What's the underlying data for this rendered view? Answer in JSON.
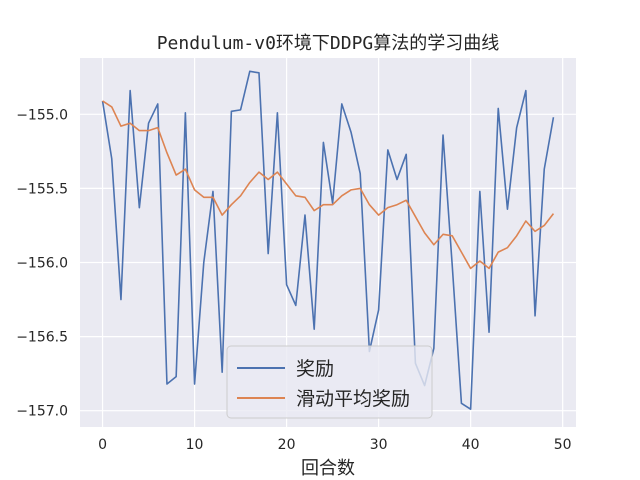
{
  "chart_data": {
    "type": "line",
    "title": "Pendulum-v0环境下DDPG算法的学习曲线",
    "xlabel": "回合数",
    "ylabel": "",
    "xlim": [
      -2.45,
      51.45
    ],
    "ylim": [
      -157.11,
      -154.62
    ],
    "xticks": [
      0,
      10,
      20,
      30,
      40,
      50
    ],
    "yticks": [
      -155.0,
      -155.5,
      -156.0,
      -156.5,
      -157.0
    ],
    "xtick_labels": [
      "0",
      "10",
      "20",
      "30",
      "40",
      "50"
    ],
    "ytick_labels": [
      "−155.0",
      "−155.5",
      "−156.0",
      "−156.5",
      "−157.0"
    ],
    "grid": true,
    "legend_position": "lower-center",
    "x": [
      0,
      1,
      2,
      3,
      4,
      5,
      6,
      7,
      8,
      9,
      10,
      11,
      12,
      13,
      14,
      15,
      16,
      17,
      18,
      19,
      20,
      21,
      22,
      23,
      24,
      25,
      26,
      27,
      28,
      29,
      30,
      31,
      32,
      33,
      34,
      35,
      36,
      37,
      38,
      39,
      40,
      41,
      42,
      43,
      44,
      45,
      46,
      47,
      48,
      49
    ],
    "series": [
      {
        "name": "奖励",
        "color": "#4c72b0",
        "values": [
          -154.91,
          -155.3,
          -156.25,
          -154.84,
          -155.63,
          -155.06,
          -154.93,
          -156.82,
          -156.77,
          -154.99,
          -156.82,
          -156.0,
          -155.52,
          -156.74,
          -154.98,
          -154.97,
          -154.71,
          -154.72,
          -155.94,
          -154.99,
          -156.15,
          -156.29,
          -155.68,
          -156.45,
          -155.19,
          -155.6,
          -154.93,
          -155.12,
          -155.4,
          -156.6,
          -156.32,
          -155.24,
          -155.44,
          -155.27,
          -156.68,
          -156.83,
          -156.58,
          -155.14,
          -156.02,
          -156.95,
          -156.99,
          -155.52,
          -156.47,
          -154.96,
          -155.64,
          -155.09,
          -154.84,
          -156.36,
          -155.37,
          -155.02
        ]
      },
      {
        "name": "滑动平均奖励",
        "color": "#dd8452",
        "values": [
          -154.91,
          -154.95,
          -155.08,
          -155.06,
          -155.11,
          -155.11,
          -155.09,
          -155.26,
          -155.41,
          -155.37,
          -155.51,
          -155.56,
          -155.56,
          -155.68,
          -155.61,
          -155.55,
          -155.46,
          -155.39,
          -155.44,
          -155.39,
          -155.47,
          -155.55,
          -155.56,
          -155.65,
          -155.61,
          -155.61,
          -155.55,
          -155.51,
          -155.5,
          -155.61,
          -155.68,
          -155.63,
          -155.61,
          -155.58,
          -155.69,
          -155.8,
          -155.88,
          -155.81,
          -155.82,
          -155.93,
          -156.04,
          -155.99,
          -156.04,
          -155.93,
          -155.9,
          -155.82,
          -155.72,
          -155.79,
          -155.75,
          -155.67
        ]
      }
    ]
  }
}
